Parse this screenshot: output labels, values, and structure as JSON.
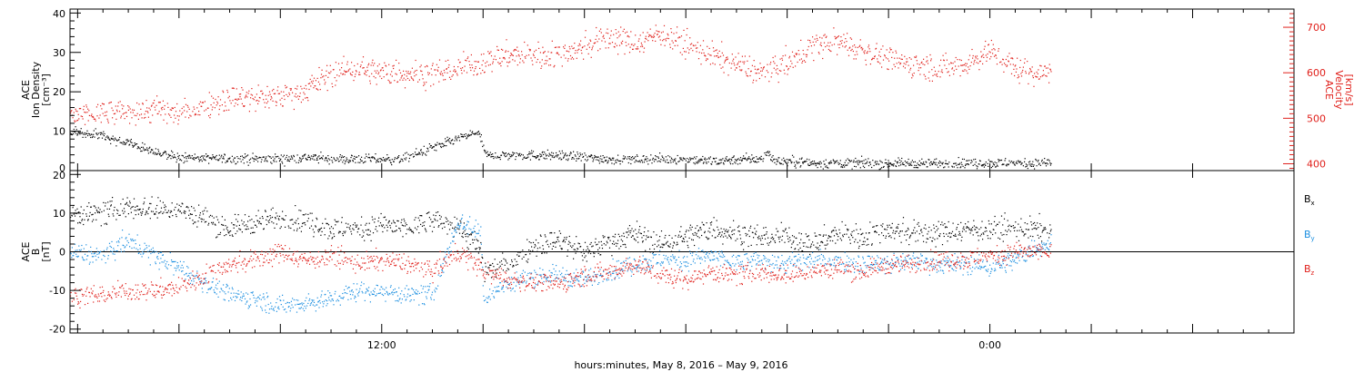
{
  "chart_data": [
    {
      "type": "scatter",
      "panel": "top",
      "left_axis": {
        "label_lines": [
          "ACE",
          "Ion Density",
          "[cm⁻³]"
        ],
        "ylim": [
          0,
          41
        ],
        "ticks": [
          "0",
          "10",
          "20",
          "30",
          "40"
        ],
        "color": "#000000"
      },
      "right_axis": {
        "label_lines": [
          "ACE",
          "Velocity",
          "[km/s]"
        ],
        "ylim": [
          385,
          740
        ],
        "ticks": [
          "400",
          "500",
          "600",
          "700"
        ],
        "color": "#e0201b"
      },
      "series": [
        {
          "color": "#000000",
          "axis": "left",
          "end_hour": 38.4,
          "anchors": [
            [
              -0.3,
              10
            ],
            [
              1,
              9
            ],
            [
              1.4,
              8
            ],
            [
              2,
              7
            ],
            [
              2.5,
              6
            ],
            [
              3,
              5
            ],
            [
              3.6,
              4
            ],
            [
              4,
              3.5
            ],
            [
              5,
              3.2
            ],
            [
              6,
              3.2
            ],
            [
              7,
              3
            ],
            [
              8,
              3
            ],
            [
              9,
              3.5
            ],
            [
              10,
              3
            ],
            [
              11,
              3
            ],
            [
              12,
              3
            ],
            [
              12.8,
              3
            ],
            [
              13.2,
              4
            ],
            [
              13.6,
              5
            ],
            [
              14,
              6
            ],
            [
              14.5,
              7
            ],
            [
              14.9,
              8
            ],
            [
              15.4,
              9
            ],
            [
              15.8,
              10
            ],
            [
              16.1,
              4
            ],
            [
              17,
              4
            ],
            [
              18,
              4
            ],
            [
              19,
              4
            ],
            [
              20,
              3.5
            ],
            [
              21,
              3
            ],
            [
              22,
              3
            ],
            [
              23,
              3
            ],
            [
              24,
              3
            ],
            [
              25,
              2.5
            ],
            [
              26,
              3
            ],
            [
              27,
              3
            ],
            [
              27.2,
              5
            ],
            [
              27.5,
              2.5
            ],
            [
              28,
              2.5
            ],
            [
              29,
              2
            ],
            [
              30,
              2
            ],
            [
              31,
              2
            ],
            [
              32,
              2
            ],
            [
              33,
              2
            ],
            [
              34,
              2
            ],
            [
              35,
              2
            ],
            [
              36,
              2
            ],
            [
              37,
              2
            ],
            [
              38,
              2
            ],
            [
              38.4,
              2
            ]
          ],
          "noise": 1.2
        },
        {
          "color": "#e0201b",
          "axis": "right",
          "end_hour": 38.4,
          "anchors": [
            [
              -0.3,
              505
            ],
            [
              1,
              510
            ],
            [
              2,
              515
            ],
            [
              3,
              520
            ],
            [
              4,
              510
            ],
            [
              5,
              530
            ],
            [
              6,
              545
            ],
            [
              7,
              545
            ],
            [
              8,
              550
            ],
            [
              9,
              565
            ],
            [
              10,
              600
            ],
            [
              11,
              610
            ],
            [
              12,
              600
            ],
            [
              13,
              600
            ],
            [
              14,
              600
            ],
            [
              15,
              610
            ],
            [
              16,
              625
            ],
            [
              17,
              640
            ],
            [
              18,
              640
            ],
            [
              19,
              640
            ],
            [
              20,
              660
            ],
            [
              21,
              680
            ],
            [
              22,
              665
            ],
            [
              23,
              690
            ],
            [
              24,
              660
            ],
            [
              25,
              640
            ],
            [
              26,
              620
            ],
            [
              27,
              600
            ],
            [
              28,
              620
            ],
            [
              29,
              660
            ],
            [
              30,
              670
            ],
            [
              31,
              650
            ],
            [
              32,
              630
            ],
            [
              33,
              620
            ],
            [
              34,
              610
            ],
            [
              35,
              620
            ],
            [
              36,
              650
            ],
            [
              37,
              610
            ],
            [
              38,
              600
            ],
            [
              38.4,
              610
            ]
          ],
          "noise": 28
        }
      ]
    },
    {
      "type": "scatter",
      "panel": "bottom",
      "left_axis": {
        "label_lines": [
          "ACE",
          "B",
          "[nT]"
        ],
        "ylim": [
          -21,
          21
        ],
        "ticks": [
          "-20",
          "-10",
          "0",
          "10",
          "20"
        ],
        "color": "#000000"
      },
      "zero_line": true,
      "series": [
        {
          "name": "Bx",
          "color": "#000000",
          "end_hour": 38.4,
          "anchors": [
            [
              -0.3,
              10
            ],
            [
              1,
              10
            ],
            [
              2,
              12
            ],
            [
              3,
              11
            ],
            [
              4,
              11
            ],
            [
              5,
              9
            ],
            [
              6,
              6
            ],
            [
              7,
              8
            ],
            [
              8,
              9
            ],
            [
              9,
              8
            ],
            [
              10,
              6
            ],
            [
              11,
              6
            ],
            [
              12,
              7
            ],
            [
              13,
              6
            ],
            [
              14,
              8
            ],
            [
              15,
              7
            ],
            [
              15.9,
              0
            ],
            [
              16,
              -5
            ],
            [
              17,
              -3
            ],
            [
              18,
              2
            ],
            [
              19,
              3
            ],
            [
              20,
              0
            ],
            [
              21,
              3
            ],
            [
              22,
              5
            ],
            [
              23,
              2
            ],
            [
              24,
              4
            ],
            [
              25,
              6
            ],
            [
              26,
              5
            ],
            [
              27,
              4
            ],
            [
              28,
              4
            ],
            [
              29,
              2
            ],
            [
              30,
              5
            ],
            [
              31,
              4
            ],
            [
              32,
              6
            ],
            [
              33,
              5
            ],
            [
              34,
              5
            ],
            [
              35,
              6
            ],
            [
              36,
              6
            ],
            [
              37,
              6
            ],
            [
              38,
              6
            ],
            [
              38.4,
              5
            ]
          ],
          "noise": 3
        },
        {
          "name": "By",
          "color": "#1a8ee0",
          "end_hour": 38.4,
          "anchors": [
            [
              -0.3,
              0
            ],
            [
              1,
              -1
            ],
            [
              2,
              3
            ],
            [
              3,
              -1
            ],
            [
              4,
              -4
            ],
            [
              5,
              -8
            ],
            [
              6,
              -11
            ],
            [
              7,
              -12
            ],
            [
              8,
              -14
            ],
            [
              9,
              -13
            ],
            [
              10,
              -12
            ],
            [
              11,
              -10
            ],
            [
              12,
              -10
            ],
            [
              13,
              -11
            ],
            [
              14,
              -11
            ],
            [
              15,
              8
            ],
            [
              15.9,
              5
            ],
            [
              16,
              -12
            ],
            [
              17,
              -8
            ],
            [
              18,
              -6
            ],
            [
              19,
              -6
            ],
            [
              20,
              -7
            ],
            [
              21,
              -5
            ],
            [
              22,
              -3
            ],
            [
              23,
              -2
            ],
            [
              24,
              -2
            ],
            [
              25,
              -1
            ],
            [
              26,
              -3
            ],
            [
              27,
              -2
            ],
            [
              28,
              -3
            ],
            [
              29,
              -2
            ],
            [
              30,
              -2
            ],
            [
              31,
              -3
            ],
            [
              32,
              -3
            ],
            [
              33,
              -2
            ],
            [
              34,
              -3
            ],
            [
              35,
              -3
            ],
            [
              36,
              -4
            ],
            [
              37,
              -2
            ],
            [
              38,
              2
            ],
            [
              38.4,
              2
            ]
          ],
          "noise": 2.5
        },
        {
          "name": "Bz",
          "color": "#e0201b",
          "end_hour": 38.4,
          "anchors": [
            [
              -0.3,
              -11
            ],
            [
              1,
              -11
            ],
            [
              2,
              -10
            ],
            [
              3,
              -10
            ],
            [
              4,
              -9
            ],
            [
              5,
              -6
            ],
            [
              6,
              -3
            ],
            [
              7,
              -2
            ],
            [
              8,
              0
            ],
            [
              9,
              -2
            ],
            [
              10,
              -1
            ],
            [
              11,
              -3
            ],
            [
              12,
              -2
            ],
            [
              13,
              -3
            ],
            [
              14,
              -5
            ],
            [
              15,
              0
            ],
            [
              15.9,
              -4
            ],
            [
              16,
              -5
            ],
            [
              17,
              -7
            ],
            [
              18,
              -8
            ],
            [
              19,
              -8
            ],
            [
              20,
              -6
            ],
            [
              21,
              -5
            ],
            [
              22,
              -3
            ],
            [
              23,
              -6
            ],
            [
              24,
              -7
            ],
            [
              25,
              -5
            ],
            [
              26,
              -6
            ],
            [
              27,
              -5
            ],
            [
              28,
              -6
            ],
            [
              29,
              -5
            ],
            [
              30,
              -4
            ],
            [
              31,
              -5
            ],
            [
              32,
              -3
            ],
            [
              33,
              -3
            ],
            [
              34,
              -2
            ],
            [
              35,
              -2
            ],
            [
              36,
              -1
            ],
            [
              37,
              0
            ],
            [
              38,
              0
            ],
            [
              38.4,
              0
            ]
          ],
          "noise": 2.5
        }
      ],
      "legend": [
        {
          "label": "B",
          "sub": "x",
          "color": "#000000"
        },
        {
          "label": "B",
          "sub": "y",
          "color": "#1a8ee0"
        },
        {
          "label": "B",
          "sub": "z",
          "color": "#e0201b"
        }
      ],
      "legend_placement": "right"
    }
  ],
  "x_axis": {
    "range_hours": [
      -0.3,
      48
    ],
    "labeled_ticks": [
      {
        "hour": 12,
        "label": "12:00"
      },
      {
        "hour": 36,
        "label": "0:00"
      }
    ],
    "major_tick_hours": [
      0,
      4,
      8,
      12,
      16,
      20,
      24,
      28,
      32,
      36,
      40,
      44,
      48
    ],
    "xlabel": "hours:minutes,  May  8, 2016 – May  9, 2016"
  }
}
